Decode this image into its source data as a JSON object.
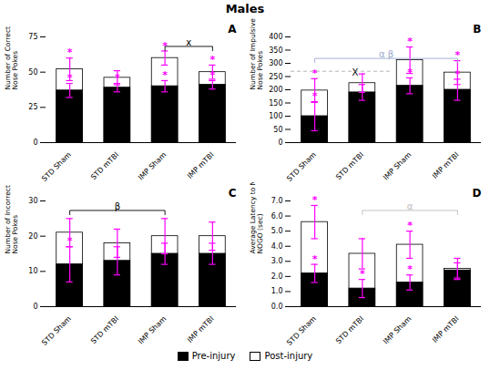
{
  "title": "Males",
  "legend": "bottom",
  "chart_data": [
    {
      "type": "bar",
      "title": "A",
      "ylabel": "Number of Correct\nNose Pokes",
      "categories": [
        "STD Sham",
        "STD mTBI",
        "IMP Sham",
        "IMP mTBI"
      ],
      "ylim": [
        0,
        75
      ],
      "yticks": [
        0,
        25,
        50,
        75
      ],
      "edge_color": "#000000",
      "error_color": "#ff00ff",
      "star_color": "#ff00ff",
      "series": [
        {
          "name": "Pre-injury",
          "color": "#000000",
          "values": [
            37,
            39,
            40,
            41
          ],
          "errors": [
            5,
            3,
            4,
            3
          ],
          "stars": [
            "*",
            "*",
            "*",
            "*"
          ]
        },
        {
          "name": "Post-injury",
          "color": "#ffffff",
          "values": [
            52,
            46,
            60,
            50
          ],
          "errors": [
            8,
            5,
            5,
            5
          ],
          "stars": [
            "*",
            null,
            "*",
            "*"
          ]
        }
      ],
      "annotations": [
        {
          "type": "bracket",
          "from": "IMP Sham",
          "to": "IMP mTBI",
          "y": 68.25,
          "text": "x",
          "color": "#000000"
        }
      ]
    },
    {
      "type": "bar",
      "title": "B",
      "ylabel": "Number of Impulsive\nNose Pokes",
      "categories": [
        "STD Sham",
        "STD mTBI",
        "IMP Sham",
        "IMP mTBI"
      ],
      "ylim": [
        0,
        400
      ],
      "yticks": [
        0,
        50,
        100,
        150,
        200,
        250,
        300,
        350,
        400
      ],
      "edge_color": "#000000",
      "error_color": "#ff00ff",
      "star_color": "#ff00ff",
      "series": [
        {
          "name": "Pre-injury",
          "color": "#000000",
          "values": [
            100,
            190,
            215,
            200
          ],
          "errors": [
            55,
            30,
            30,
            40
          ],
          "stars": [
            "*",
            null,
            "*",
            "*"
          ]
        },
        {
          "name": "Post-injury",
          "color": "#ffffff",
          "values": [
            197,
            225,
            312,
            265
          ],
          "errors": [
            45,
            35,
            50,
            45
          ],
          "stars": [
            "*",
            null,
            "*",
            "*"
          ]
        }
      ],
      "annotations": [
        {
          "type": "bracket",
          "from": "STD Sham",
          "to": "IMP mTBI",
          "y": 318.5,
          "text": "α β",
          "color": "#99aacc"
        },
        {
          "type": "text",
          "category": "STD mTBI",
          "y": 255,
          "text": "X",
          "color": "#000000"
        },
        {
          "type": "hline",
          "y": 270,
          "color": "#888888",
          "line_style": "dashed"
        }
      ]
    },
    {
      "type": "bar",
      "title": "C",
      "ylabel": "Number of Incorrect\nNose Pokes",
      "categories": [
        "STD Sham",
        "STD mTBI",
        "IMP Sham",
        "IMP mTBI"
      ],
      "ylim": [
        0,
        30
      ],
      "yticks": [
        0,
        10,
        20,
        30
      ],
      "edge_color": "#000000",
      "error_color": "#ff00ff",
      "star_color": "#ff00ff",
      "series": [
        {
          "name": "Pre-injury",
          "color": "#000000",
          "values": [
            12,
            13,
            15,
            15
          ],
          "errors": [
            5,
            4,
            3,
            3
          ],
          "stars": [
            "*",
            null,
            null,
            null
          ]
        },
        {
          "name": "Post-injury",
          "color": "#ffffff",
          "values": [
            21,
            18,
            20,
            20
          ],
          "errors": [
            4,
            4,
            5,
            4
          ],
          "stars": [
            null,
            null,
            null,
            null
          ]
        }
      ],
      "annotations": [
        {
          "type": "bracket",
          "from": "STD Sham",
          "to": "IMP Sham",
          "y": 27.3,
          "text": "β",
          "color": "#000000"
        }
      ]
    },
    {
      "type": "bar",
      "title": "D",
      "ylabel": "Average Latency to Nose Poke in\nNOGO (sec)",
      "categories": [
        "STD Sham",
        "STD mTBI",
        "IMP Sham",
        "IMP mTBI"
      ],
      "ylim": [
        0,
        7
      ],
      "yticks": [
        0,
        1,
        2,
        3,
        4,
        5,
        6,
        7
      ],
      "edge_color": "#000000",
      "error_color": "#ff00ff",
      "star_color": "#ff00ff",
      "series": [
        {
          "name": "Pre-injury",
          "color": "#000000",
          "values": [
            2.2,
            1.2,
            1.6,
            2.4
          ],
          "errors": [
            0.6,
            0.6,
            0.5,
            0.5
          ],
          "stars": [
            "*",
            "*",
            "*",
            null
          ]
        },
        {
          "name": "Post-injury",
          "color": "#ffffff",
          "values": [
            5.6,
            3.5,
            4.1,
            2.5
          ],
          "errors": [
            1.1,
            1.0,
            0.9,
            0.7
          ],
          "stars": [
            "*",
            null,
            "*",
            null
          ]
        }
      ],
      "annotations": [
        {
          "type": "bracket",
          "from": "STD mTBI",
          "to": "IMP mTBI",
          "y": 6.37,
          "text": "α",
          "color": "#bbbbbb"
        }
      ]
    }
  ]
}
